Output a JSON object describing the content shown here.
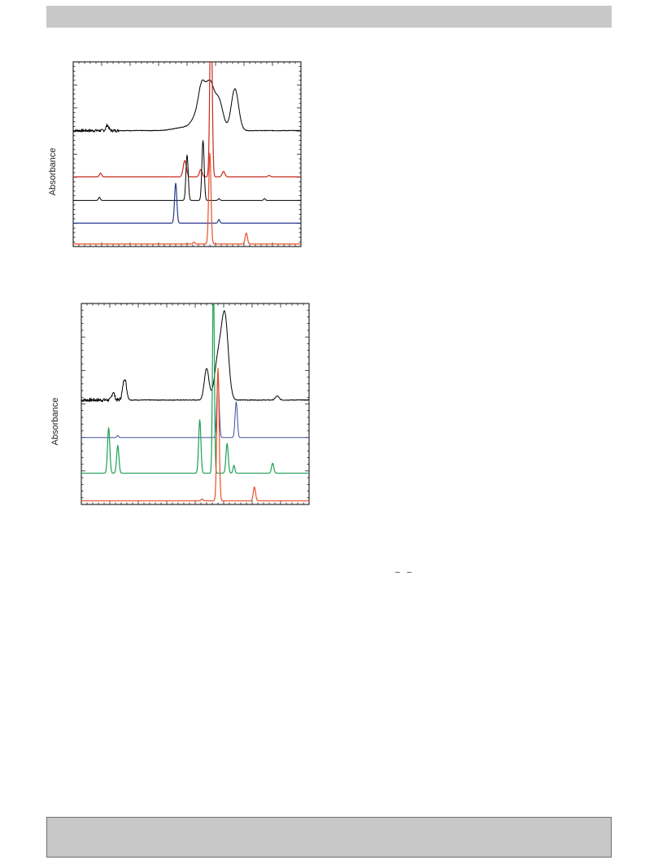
{
  "chart_data": [
    {
      "type": "line",
      "title": "",
      "xlabel": "",
      "ylabel": "Absorbance",
      "grid": false,
      "traces": [
        {
          "name": "",
          "color": "#000000",
          "baseline": 0.63,
          "width": 1.0,
          "noise": 0.9,
          "peaks": [
            [
              0.15,
              0.03,
              0.006
            ],
            [
              0.5,
              0.02,
              0.05
            ],
            [
              0.54,
              0.06,
              0.02
            ],
            [
              0.565,
              0.2,
              0.015
            ],
            [
              0.6,
              0.25,
              0.018
            ],
            [
              0.64,
              0.16,
              0.018
            ],
            [
              0.71,
              0.23,
              0.016
            ]
          ]
        },
        {
          "name": "",
          "color": "#c8281e",
          "baseline": 0.375,
          "width": 1.2,
          "noise": 0,
          "peaks": [
            [
              0.12,
              0.02,
              0.005
            ],
            [
              0.49,
              0.09,
              0.007
            ],
            [
              0.56,
              0.04,
              0.006
            ],
            [
              0.605,
              1.0,
              0.005
            ],
            [
              0.66,
              0.03,
              0.006
            ],
            [
              0.86,
              0.008,
              0.005
            ]
          ]
        },
        {
          "name": "",
          "color": "#000000",
          "baseline": 0.245,
          "width": 1.0,
          "noise": 0,
          "peaks": [
            [
              0.115,
              0.018,
              0.004
            ],
            [
              0.5,
              0.25,
              0.005
            ],
            [
              0.57,
              0.33,
              0.005
            ],
            [
              0.64,
              0.01,
              0.004
            ],
            [
              0.84,
              0.01,
              0.004
            ]
          ]
        },
        {
          "name": "",
          "color": "#2a3a8c",
          "baseline": 0.12,
          "width": 1.2,
          "noise": 0,
          "peaks": [
            [
              0.45,
              0.22,
              0.005
            ],
            [
              0.64,
              0.02,
              0.004
            ]
          ]
        },
        {
          "name": "",
          "color": "#e8502a",
          "baseline": 0.005,
          "width": 1.2,
          "noise": 0,
          "peaks": [
            [
              0.53,
              0.01,
              0.004
            ],
            [
              0.6,
              0.5,
              0.005
            ],
            [
              0.76,
              0.06,
              0.005
            ]
          ]
        }
      ]
    },
    {
      "type": "line",
      "title": "",
      "xlabel": "",
      "ylabel": "Absorbance",
      "grid": false,
      "traces": [
        {
          "name": "",
          "color": "#000000",
          "baseline": 0.52,
          "width": 1.0,
          "noise": 1.0,
          "peaks": [
            [
              0.19,
              0.11,
              0.008
            ],
            [
              0.14,
              0.04,
              0.006
            ],
            [
              0.55,
              0.16,
              0.01
            ],
            [
              0.6,
              0.2,
              0.015
            ],
            [
              0.63,
              0.42,
              0.015
            ],
            [
              0.86,
              0.02,
              0.008
            ]
          ]
        },
        {
          "name": "",
          "color": "#2a3a8c",
          "baseline": 0.33,
          "width": 0.9,
          "noise": 0,
          "peaks": [
            [
              0.16,
              0.01,
              0.004
            ],
            [
              0.6,
              0.32,
              0.005
            ],
            [
              0.68,
              0.18,
              0.005
            ]
          ]
        },
        {
          "name": "",
          "color": "#1fa054",
          "baseline": 0.15,
          "width": 1.2,
          "noise": 0,
          "peaks": [
            [
              0.12,
              0.23,
              0.005
            ],
            [
              0.16,
              0.14,
              0.005
            ],
            [
              0.52,
              0.27,
              0.005
            ],
            [
              0.58,
              1.0,
              0.004
            ],
            [
              0.64,
              0.15,
              0.005
            ],
            [
              0.67,
              0.04,
              0.004
            ],
            [
              0.84,
              0.05,
              0.005
            ]
          ]
        },
        {
          "name": "",
          "color": "#e8502a",
          "baseline": 0.01,
          "width": 1.2,
          "noise": 0,
          "peaks": [
            [
              0.53,
              0.01,
              0.004
            ],
            [
              0.6,
              0.67,
              0.005
            ],
            [
              0.76,
              0.07,
              0.005
            ]
          ]
        }
      ]
    }
  ],
  "annotations": {
    "dash_mark": "– –"
  }
}
